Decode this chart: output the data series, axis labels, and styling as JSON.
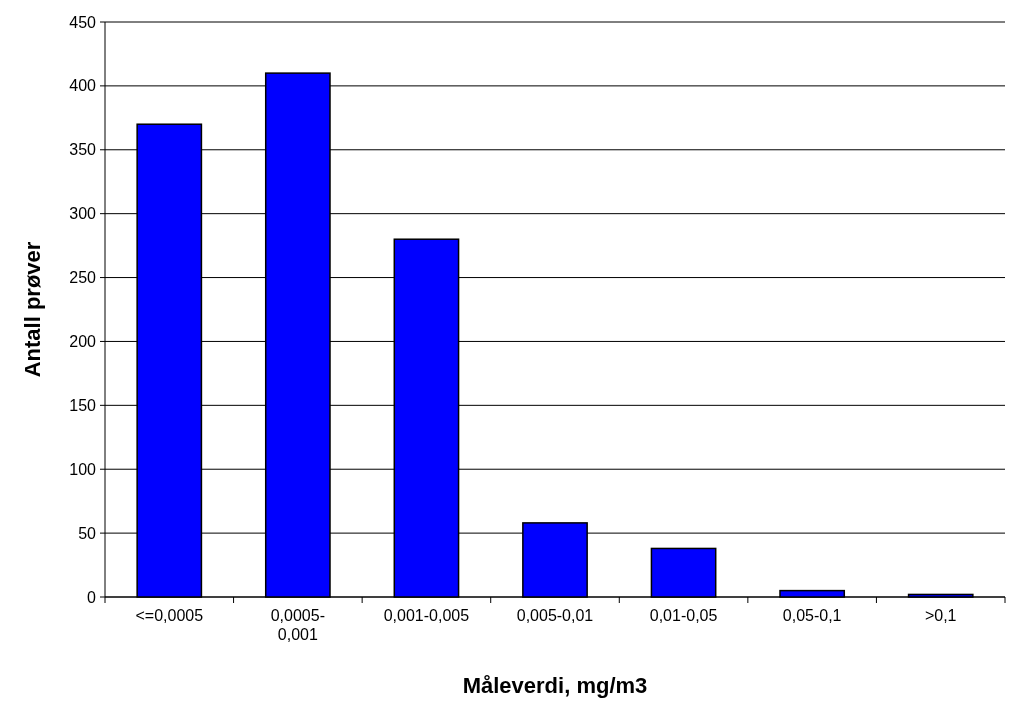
{
  "chart_data": {
    "type": "bar",
    "xlabel": "Måleverdi, mg/m3",
    "ylabel": "Antall prøver",
    "categories": [
      "<=0,0005",
      "0,0005-0,001",
      "0,001-0,005",
      "0,005-0,01",
      "0,01-0,05",
      "0,05-0,1",
      ">0,1"
    ],
    "values": [
      370,
      410,
      280,
      58,
      38,
      5,
      2
    ],
    "color": "#0000ff",
    "ylim": [
      0,
      450
    ],
    "yticks": [
      0,
      50,
      100,
      150,
      200,
      250,
      300,
      350,
      400,
      450
    ],
    "grid": "y"
  }
}
